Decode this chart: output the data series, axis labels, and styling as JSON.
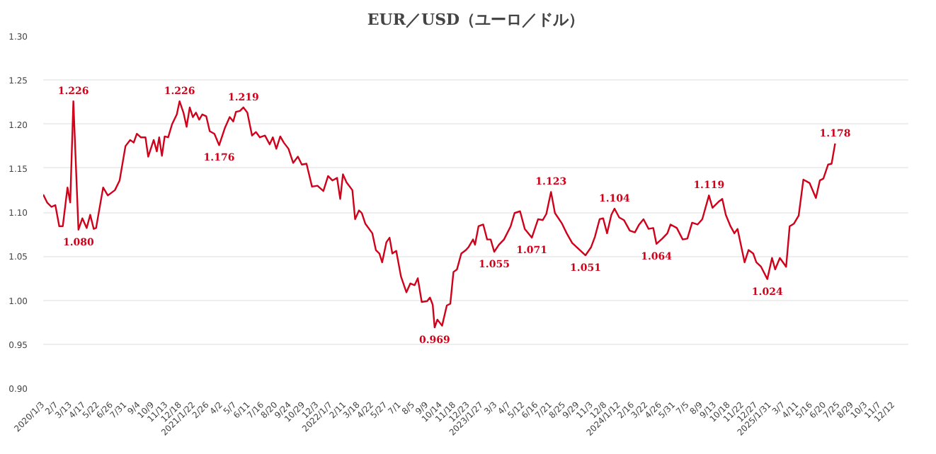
{
  "chart_data": {
    "type": "line",
    "title": "EUR／USD（ユーロ／ドル）",
    "x": [
      "2020-01-03",
      "2020-01-13",
      "2020-01-24",
      "2020-02-03",
      "2020-02-13",
      "2020-02-22",
      "2020-03-05",
      "2020-03-12",
      "2020-03-20",
      "2020-04-02",
      "2020-04-12",
      "2020-04-23",
      "2020-05-02",
      "2020-05-11",
      "2020-05-17",
      "2020-06-04",
      "2020-06-16",
      "2020-07-04",
      "2020-07-16",
      "2020-07-31",
      "2020-08-12",
      "2020-08-21",
      "2020-08-29",
      "2020-09-08",
      "2020-09-20",
      "2020-09-27",
      "2020-10-11",
      "2020-10-19",
      "2020-10-25",
      "2020-11-01",
      "2020-11-08",
      "2020-11-17",
      "2020-11-27",
      "2020-12-09",
      "2020-12-16",
      "2020-12-26",
      "2021-01-03",
      "2021-01-11",
      "2021-01-19",
      "2021-01-27",
      "2021-02-04",
      "2021-02-12",
      "2021-02-22",
      "2021-03-03",
      "2021-03-15",
      "2021-03-27",
      "2021-04-11",
      "2021-04-23",
      "2021-05-02",
      "2021-05-09",
      "2021-05-19",
      "2021-05-28",
      "2021-06-07",
      "2021-06-19",
      "2021-06-29",
      "2021-07-09",
      "2021-07-22",
      "2021-08-03",
      "2021-08-11",
      "2021-08-20",
      "2021-08-30",
      "2021-09-08",
      "2021-09-20",
      "2021-10-02",
      "2021-10-14",
      "2021-10-24",
      "2021-11-05",
      "2021-11-19",
      "2021-12-03",
      "2021-12-18",
      "2021-12-30",
      "2022-01-10",
      "2022-01-22",
      "2022-01-30",
      "2022-02-06",
      "2022-02-15",
      "2022-03-02",
      "2022-03-09",
      "2022-03-19",
      "2022-03-26",
      "2022-04-04",
      "2022-04-22",
      "2022-05-01",
      "2022-05-10",
      "2022-05-17",
      "2022-05-28",
      "2022-06-05",
      "2022-06-12",
      "2022-06-22",
      "2022-07-04",
      "2022-07-18",
      "2022-07-28",
      "2022-08-08",
      "2022-08-16",
      "2022-08-26",
      "2022-09-09",
      "2022-09-16",
      "2022-09-23",
      "2022-09-28",
      "2022-10-05",
      "2022-10-17",
      "2022-10-29",
      "2022-11-07",
      "2022-11-15",
      "2022-11-24",
      "2022-12-05",
      "2022-12-17",
      "2022-12-23",
      "2023-01-04",
      "2023-01-09",
      "2023-01-18",
      "2023-01-30",
      "2023-02-09",
      "2023-02-18",
      "2023-02-27",
      "2023-03-11",
      "2023-03-24",
      "2023-04-10",
      "2023-04-20",
      "2023-05-04",
      "2023-05-16",
      "2023-06-03",
      "2023-06-19",
      "2023-07-01",
      "2023-07-10",
      "2023-07-22",
      "2023-08-01",
      "2023-08-19",
      "2023-08-31",
      "2023-09-14",
      "2023-10-06",
      "2023-10-18",
      "2023-11-01",
      "2023-11-11",
      "2023-11-23",
      "2023-12-02",
      "2023-12-12",
      "2023-12-23",
      "2023-12-31",
      "2024-01-12",
      "2024-01-24",
      "2024-02-08",
      "2024-02-21",
      "2024-03-03",
      "2024-03-14",
      "2024-03-27",
      "2024-04-08",
      "2024-04-16",
      "2024-05-01",
      "2024-05-14",
      "2024-05-22",
      "2024-06-07",
      "2024-06-22",
      "2024-07-04",
      "2024-07-16",
      "2024-07-30",
      "2024-08-11",
      "2024-08-28",
      "2024-09-06",
      "2024-09-22",
      "2024-10-01",
      "2024-10-10",
      "2024-10-22",
      "2024-11-01",
      "2024-11-09",
      "2024-11-27",
      "2024-12-07",
      "2024-12-19",
      "2024-12-27",
      "2025-01-08",
      "2025-01-24",
      "2025-02-05",
      "2025-02-13",
      "2025-02-25",
      "2025-03-13",
      "2025-03-22",
      "2025-04-02",
      "2025-04-14",
      "2025-04-26",
      "2025-05-12",
      "2025-05-28",
      "2025-06-07",
      "2025-06-16",
      "2025-06-28",
      "2025-07-07",
      "2025-07-16"
    ],
    "series": [
      {
        "color": "#d0021b",
        "values": [
          1.12,
          1.111,
          1.106,
          1.108,
          1.084,
          1.084,
          1.128,
          1.111,
          1.226,
          1.08,
          1.093,
          1.082,
          1.097,
          1.081,
          1.082,
          1.128,
          1.119,
          1.125,
          1.136,
          1.175,
          1.182,
          1.179,
          1.189,
          1.185,
          1.185,
          1.163,
          1.182,
          1.169,
          1.185,
          1.164,
          1.186,
          1.185,
          1.2,
          1.211,
          1.226,
          1.213,
          1.197,
          1.219,
          1.208,
          1.213,
          1.205,
          1.211,
          1.209,
          1.192,
          1.189,
          1.176,
          1.196,
          1.208,
          1.203,
          1.214,
          1.215,
          1.219,
          1.213,
          1.187,
          1.191,
          1.185,
          1.187,
          1.177,
          1.185,
          1.172,
          1.186,
          1.179,
          1.172,
          1.156,
          1.163,
          1.154,
          1.155,
          1.129,
          1.13,
          1.124,
          1.141,
          1.136,
          1.139,
          1.115,
          1.143,
          1.134,
          1.125,
          1.092,
          1.102,
          1.099,
          1.087,
          1.076,
          1.057,
          1.053,
          1.043,
          1.066,
          1.071,
          1.053,
          1.056,
          1.027,
          1.009,
          1.019,
          1.017,
          1.025,
          0.998,
          0.999,
          1.003,
          0.995,
          0.969,
          0.978,
          0.971,
          0.994,
          0.996,
          1.032,
          1.035,
          1.053,
          1.057,
          1.06,
          1.069,
          1.063,
          1.084,
          1.086,
          1.069,
          1.069,
          1.055,
          1.063,
          1.069,
          1.084,
          1.099,
          1.101,
          1.081,
          1.071,
          1.092,
          1.091,
          1.098,
          1.123,
          1.099,
          1.087,
          1.076,
          1.065,
          1.056,
          1.051,
          1.06,
          1.072,
          1.092,
          1.093,
          1.076,
          1.097,
          1.104,
          1.094,
          1.091,
          1.079,
          1.077,
          1.086,
          1.092,
          1.081,
          1.082,
          1.064,
          1.07,
          1.076,
          1.086,
          1.082,
          1.069,
          1.07,
          1.088,
          1.086,
          1.092,
          1.119,
          1.105,
          1.112,
          1.115,
          1.097,
          1.084,
          1.076,
          1.081,
          1.043,
          1.057,
          1.053,
          1.043,
          1.038,
          1.024,
          1.048,
          1.035,
          1.048,
          1.038,
          1.084,
          1.087,
          1.096,
          1.137,
          1.133,
          1.116,
          1.136,
          1.138,
          1.154,
          1.155,
          1.178
        ]
      }
    ],
    "annotations": [
      {
        "text": "1.226",
        "x": "2020-03-20",
        "y": 1.226
      },
      {
        "text": "1.080",
        "x": "2020-04-02",
        "y": 1.08
      },
      {
        "text": "1.226",
        "x": "2020-12-16",
        "y": 1.226
      },
      {
        "text": "1.176",
        "x": "2021-03-27",
        "y": 1.176
      },
      {
        "text": "1.219",
        "x": "2021-05-28",
        "y": 1.219
      },
      {
        "text": "0.969",
        "x": "2022-09-28",
        "y": 0.969
      },
      {
        "text": "1.055",
        "x": "2023-02-27",
        "y": 1.055
      },
      {
        "text": "1.071",
        "x": "2023-06-03",
        "y": 1.071
      },
      {
        "text": "1.123",
        "x": "2023-07-22",
        "y": 1.123
      },
      {
        "text": "1.051",
        "x": "2023-10-18",
        "y": 1.051
      },
      {
        "text": "1.104",
        "x": "2023-12-31",
        "y": 1.104
      },
      {
        "text": "1.064",
        "x": "2024-04-16",
        "y": 1.064
      },
      {
        "text": "1.119",
        "x": "2024-08-28",
        "y": 1.119
      },
      {
        "text": "1.024",
        "x": "2025-01-24",
        "y": 1.024
      },
      {
        "text": "1.178",
        "x": "2025-07-16",
        "y": 1.178
      }
    ],
    "xlim": [
      "2020-01-03",
      "2026-01-19"
    ],
    "xticks": [
      {
        "value": "2020-01-03",
        "label": "2020/1/3"
      },
      {
        "value": "2020-02-07",
        "label": "2/7"
      },
      {
        "value": "2020-03-13",
        "label": "3/13"
      },
      {
        "value": "2020-04-17",
        "label": "4/17"
      },
      {
        "value": "2020-05-22",
        "label": "5/22"
      },
      {
        "value": "2020-06-26",
        "label": "6/26"
      },
      {
        "value": "2020-07-31",
        "label": "7/31"
      },
      {
        "value": "2020-09-04",
        "label": "9/4"
      },
      {
        "value": "2020-10-09",
        "label": "10/9"
      },
      {
        "value": "2020-11-13",
        "label": "11/13"
      },
      {
        "value": "2020-12-18",
        "label": "12/18"
      },
      {
        "value": "2021-01-22",
        "label": "2021/1/22"
      },
      {
        "value": "2021-02-26",
        "label": "2/26"
      },
      {
        "value": "2021-04-02",
        "label": "4/2"
      },
      {
        "value": "2021-05-07",
        "label": "5/7"
      },
      {
        "value": "2021-06-11",
        "label": "6/11"
      },
      {
        "value": "2021-07-16",
        "label": "7/16"
      },
      {
        "value": "2021-08-20",
        "label": "8/20"
      },
      {
        "value": "2021-09-24",
        "label": "9/24"
      },
      {
        "value": "2021-10-29",
        "label": "10/29"
      },
      {
        "value": "2021-12-03",
        "label": "12/3"
      },
      {
        "value": "2022-01-07",
        "label": "2022/1/7"
      },
      {
        "value": "2022-02-11",
        "label": "2/11"
      },
      {
        "value": "2022-03-18",
        "label": "3/18"
      },
      {
        "value": "2022-04-22",
        "label": "4/22"
      },
      {
        "value": "2022-05-27",
        "label": "5/27"
      },
      {
        "value": "2022-07-01",
        "label": "7/1"
      },
      {
        "value": "2022-08-05",
        "label": "8/5"
      },
      {
        "value": "2022-09-09",
        "label": "9/9"
      },
      {
        "value": "2022-10-14",
        "label": "10/14"
      },
      {
        "value": "2022-11-18",
        "label": "11/18"
      },
      {
        "value": "2022-12-23",
        "label": "12/23"
      },
      {
        "value": "2023-01-27",
        "label": "2023/1/27"
      },
      {
        "value": "2023-03-03",
        "label": "3/3"
      },
      {
        "value": "2023-04-07",
        "label": "4/7"
      },
      {
        "value": "2023-05-12",
        "label": "5/12"
      },
      {
        "value": "2023-06-16",
        "label": "6/16"
      },
      {
        "value": "2023-07-21",
        "label": "7/21"
      },
      {
        "value": "2023-08-25",
        "label": "8/25"
      },
      {
        "value": "2023-09-29",
        "label": "9/29"
      },
      {
        "value": "2023-11-03",
        "label": "11/3"
      },
      {
        "value": "2023-12-08",
        "label": "12/8"
      },
      {
        "value": "2024-01-12",
        "label": "2024/1/12"
      },
      {
        "value": "2024-02-16",
        "label": "2/16"
      },
      {
        "value": "2024-03-22",
        "label": "3/22"
      },
      {
        "value": "2024-04-26",
        "label": "4/26"
      },
      {
        "value": "2024-05-31",
        "label": "5/31"
      },
      {
        "value": "2024-07-05",
        "label": "7/5"
      },
      {
        "value": "2024-08-09",
        "label": "8/9"
      },
      {
        "value": "2024-09-13",
        "label": "9/13"
      },
      {
        "value": "2024-10-18",
        "label": "10/18"
      },
      {
        "value": "2024-11-22",
        "label": "11/22"
      },
      {
        "value": "2024-12-27",
        "label": "12/27"
      },
      {
        "value": "2025-01-31",
        "label": "2025/1/31"
      },
      {
        "value": "2025-03-07",
        "label": "3/7"
      },
      {
        "value": "2025-04-11",
        "label": "4/11"
      },
      {
        "value": "2025-05-16",
        "label": "5/16"
      },
      {
        "value": "2025-06-20",
        "label": "6/20"
      },
      {
        "value": "2025-07-25",
        "label": "7/25"
      },
      {
        "value": "2025-08-29",
        "label": "8/29"
      },
      {
        "value": "2025-10-03",
        "label": "10/3"
      },
      {
        "value": "2025-11-07",
        "label": "11/7"
      },
      {
        "value": "2025-12-12",
        "label": "12/12"
      }
    ],
    "ylim": [
      0.9,
      1.3
    ],
    "yticks": [
      {
        "value": 0.9,
        "label": "0.90"
      },
      0.95,
      {
        "value": 1.0,
        "label": "1.00"
      },
      1.05,
      {
        "value": 1.1,
        "label": "1.10"
      },
      1.15,
      {
        "value": 1.2,
        "label": "1.20"
      },
      1.25,
      {
        "value": 1.3,
        "label": "1.30"
      }
    ],
    "grid": "y",
    "marker": "none",
    "line_style": "solid"
  }
}
